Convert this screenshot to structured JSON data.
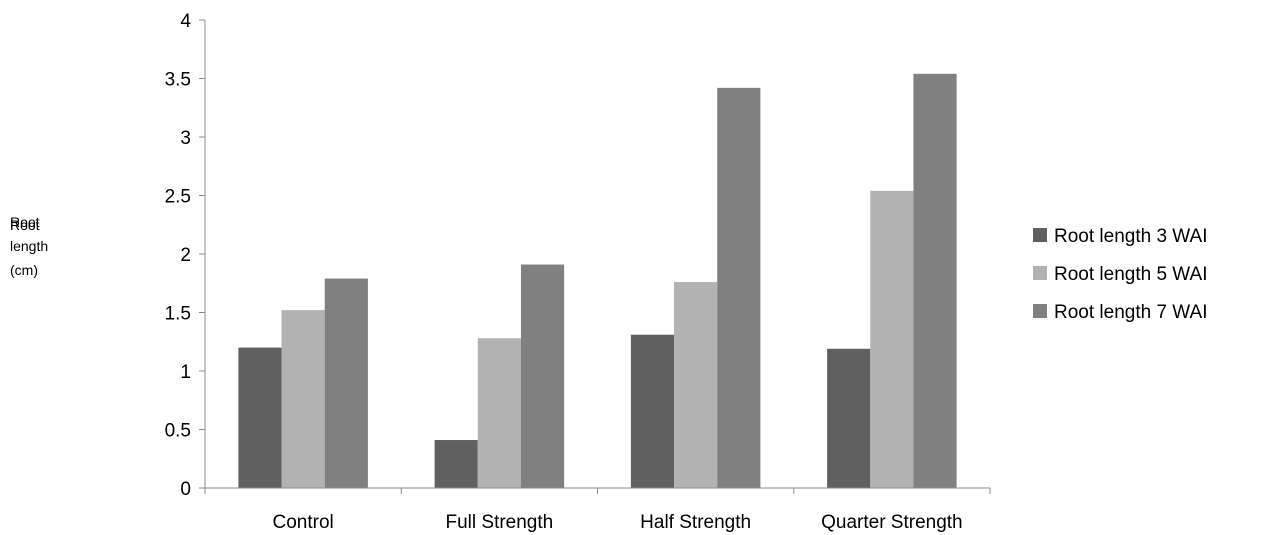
{
  "chart_data": {
    "type": "bar",
    "title": "",
    "xlabel": "",
    "ylabel_lines": [
      "Root",
      "length",
      "(cm)"
    ],
    "categories": [
      "Control",
      "Full Strength",
      "Half Strength",
      "Quarter Strength"
    ],
    "series": [
      {
        "name": "Root length 3 WAI",
        "color": "#606060",
        "values": [
          1.2,
          0.41,
          1.31,
          1.19
        ]
      },
      {
        "name": "Root length 5 WAI",
        "color": "#b2b2b2",
        "values": [
          1.52,
          1.28,
          1.76,
          2.54
        ]
      },
      {
        "name": "Root length 7 WAI",
        "color": "#808080",
        "values": [
          1.79,
          1.91,
          3.42,
          3.54
        ]
      }
    ],
    "ylim": [
      0,
      4
    ],
    "yticks": [
      "0",
      "0.5",
      "1",
      "1.5",
      "2",
      "2.5",
      "3",
      "3.5",
      "4"
    ],
    "grid": false,
    "legend_position": "right"
  }
}
